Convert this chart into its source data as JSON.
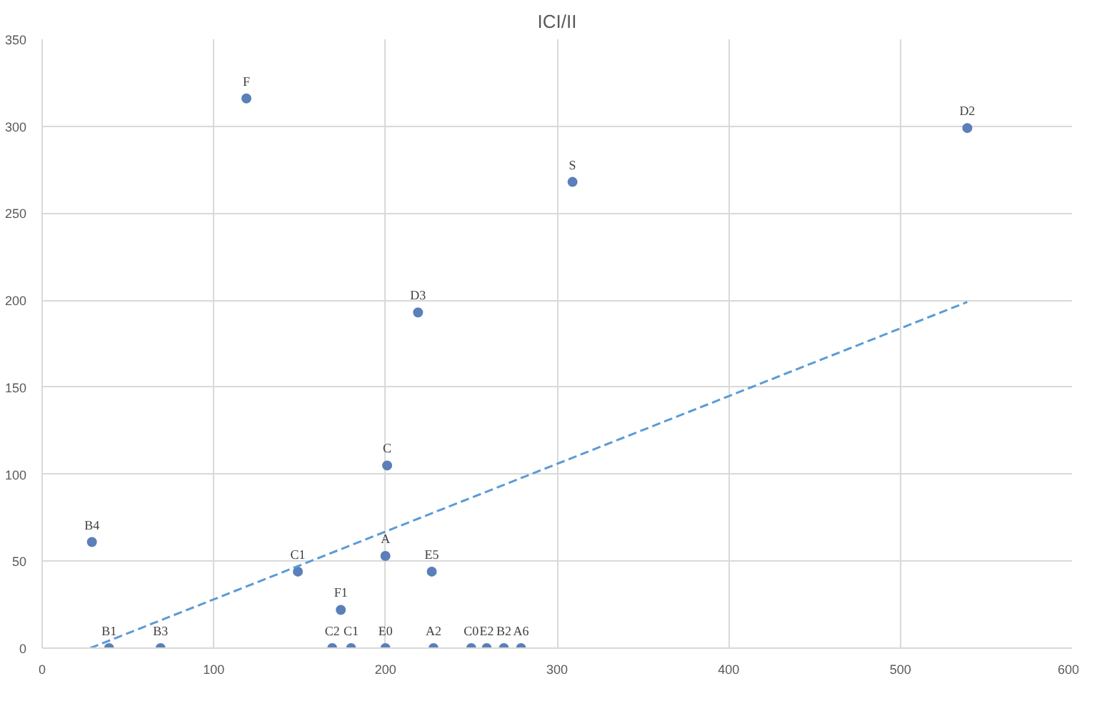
{
  "chart_data": {
    "type": "scatter",
    "title": "ICI/II",
    "x": [
      119,
      539,
      309,
      219,
      201,
      29,
      149,
      200,
      227,
      174,
      39,
      69,
      169,
      180,
      200,
      228,
      250,
      259,
      269,
      279
    ],
    "series": [
      {
        "color": "#5b7fb8",
        "marker": "circle",
        "values": [
          316,
          299,
          268,
          193,
          105,
          61,
          44,
          53,
          44,
          22,
          0,
          0,
          0,
          0,
          0,
          0,
          0,
          0,
          0,
          0
        ]
      },
      {
        "type": "line",
        "color": "#5b9bd5",
        "line_style": "dashed",
        "marker": "none",
        "x": [
          28,
          539
        ],
        "values": [
          0,
          199
        ]
      }
    ],
    "annotations": [
      {
        "text": "F",
        "x": 119,
        "y": 316
      },
      {
        "text": "D2",
        "x": 539,
        "y": 299
      },
      {
        "text": "S",
        "x": 309,
        "y": 268
      },
      {
        "text": "D3",
        "x": 219,
        "y": 193
      },
      {
        "text": "C",
        "x": 201,
        "y": 105
      },
      {
        "text": "B4",
        "x": 29,
        "y": 61
      },
      {
        "text": "C1",
        "x": 149,
        "y": 44
      },
      {
        "text": "A",
        "x": 200,
        "y": 53
      },
      {
        "text": "E5",
        "x": 227,
        "y": 44
      },
      {
        "text": "F1",
        "x": 174,
        "y": 22
      },
      {
        "text": "B1",
        "x": 39,
        "y": 0
      },
      {
        "text": "B3",
        "x": 69,
        "y": 0
      },
      {
        "text": "C2",
        "x": 169,
        "y": 0
      },
      {
        "text": "C1",
        "x": 180,
        "y": 0
      },
      {
        "text": "E0",
        "x": 200,
        "y": 0
      },
      {
        "text": "A2",
        "x": 228,
        "y": 0
      },
      {
        "text": "C0",
        "x": 250,
        "y": 0
      },
      {
        "text": "E2",
        "x": 259,
        "y": 0
      },
      {
        "text": "B2",
        "x": 269,
        "y": 0
      },
      {
        "text": "A6",
        "x": 279,
        "y": 0
      }
    ],
    "xlim": [
      0,
      600
    ],
    "xticks": [
      0,
      100,
      200,
      300,
      400,
      500,
      600
    ],
    "ylim": [
      0,
      350
    ],
    "yticks": [
      0,
      50,
      100,
      150,
      200,
      250,
      300,
      350
    ],
    "grid": true
  }
}
